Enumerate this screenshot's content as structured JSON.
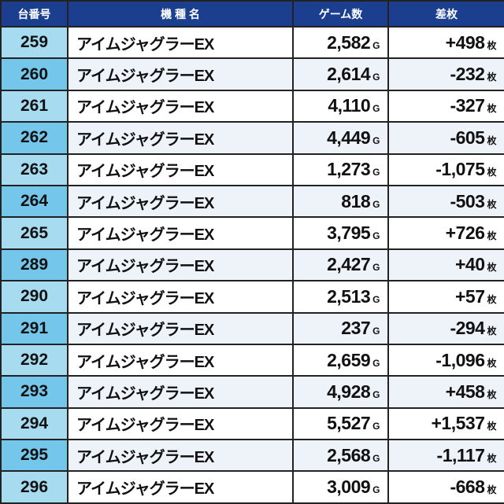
{
  "header": {
    "col1": "台番号",
    "col2": "機 種 名",
    "col3": "ゲーム数",
    "col4": "差枚"
  },
  "units": {
    "games": "G",
    "diff": "枚"
  },
  "rows": [
    {
      "no": "259",
      "name": "アイムジャグラーEX",
      "games": "2,582",
      "diff": "+498"
    },
    {
      "no": "260",
      "name": "アイムジャグラーEX",
      "games": "2,614",
      "diff": "-232"
    },
    {
      "no": "261",
      "name": "アイムジャグラーEX",
      "games": "4,110",
      "diff": "-327"
    },
    {
      "no": "262",
      "name": "アイムジャグラーEX",
      "games": "4,449",
      "diff": "-605"
    },
    {
      "no": "263",
      "name": "アイムジャグラーEX",
      "games": "1,273",
      "diff": "-1,075"
    },
    {
      "no": "264",
      "name": "アイムジャグラーEX",
      "games": "818",
      "diff": "-503"
    },
    {
      "no": "265",
      "name": "アイムジャグラーEX",
      "games": "3,795",
      "diff": "+726"
    },
    {
      "no": "289",
      "name": "アイムジャグラーEX",
      "games": "2,427",
      "diff": "+40"
    },
    {
      "no": "290",
      "name": "アイムジャグラーEX",
      "games": "2,513",
      "diff": "+57"
    },
    {
      "no": "291",
      "name": "アイムジャグラーEX",
      "games": "237",
      "diff": "-294"
    },
    {
      "no": "292",
      "name": "アイムジャグラーEX",
      "games": "2,659",
      "diff": "-1,096"
    },
    {
      "no": "293",
      "name": "アイムジャグラーEX",
      "games": "4,928",
      "diff": "+458"
    },
    {
      "no": "294",
      "name": "アイムジャグラーEX",
      "games": "5,527",
      "diff": "+1,537"
    },
    {
      "no": "295",
      "name": "アイムジャグラーEX",
      "games": "2,568",
      "diff": "-1,117"
    },
    {
      "no": "296",
      "name": "アイムジャグラーEX",
      "games": "3,009",
      "diff": "-668"
    }
  ]
}
